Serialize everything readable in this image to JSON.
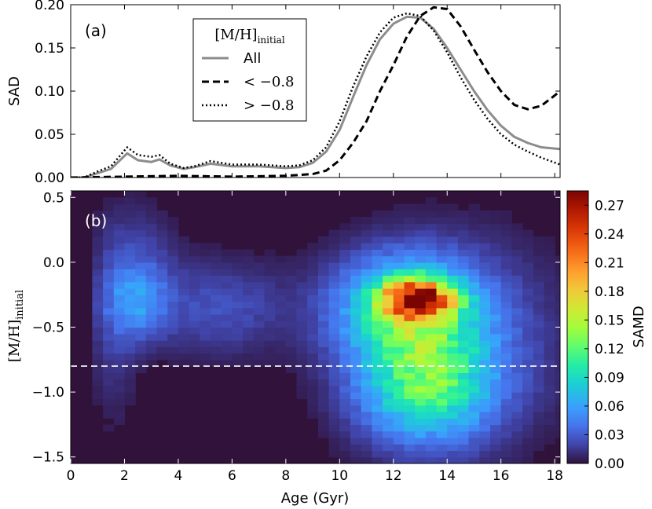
{
  "chart_data": [
    {
      "type": "line",
      "panel_label": "(a)",
      "ylabel": "SAD",
      "xlim": [
        0,
        18.2
      ],
      "ylim": [
        0,
        0.2
      ],
      "yticks": [
        "0.00",
        "0.05",
        "0.10",
        "0.15",
        "0.20"
      ],
      "grid": false,
      "legend": {
        "title": "[M/H]",
        "title_subscript": "initial",
        "placement": "top-center",
        "entries": [
          "All",
          "< −0.8",
          "> −0.8"
        ]
      },
      "series": [
        {
          "name": "All",
          "style": "solid",
          "color": "#8c8c8c",
          "points": [
            [
              0,
              0
            ],
            [
              0.5,
              0
            ],
            [
              1,
              0.005
            ],
            [
              1.5,
              0.01
            ],
            [
              2.1,
              0.028
            ],
            [
              2.5,
              0.02
            ],
            [
              3,
              0.018
            ],
            [
              3.3,
              0.021
            ],
            [
              3.7,
              0.014
            ],
            [
              4.2,
              0.01
            ],
            [
              4.6,
              0.012
            ],
            [
              5.2,
              0.016
            ],
            [
              6,
              0.013
            ],
            [
              7,
              0.013
            ],
            [
              8,
              0.011
            ],
            [
              8.5,
              0.012
            ],
            [
              9,
              0.017
            ],
            [
              9.5,
              0.03
            ],
            [
              10,
              0.055
            ],
            [
              10.5,
              0.093
            ],
            [
              11,
              0.13
            ],
            [
              11.5,
              0.16
            ],
            [
              12,
              0.178
            ],
            [
              12.5,
              0.186
            ],
            [
              13,
              0.185
            ],
            [
              13.5,
              0.172
            ],
            [
              14,
              0.15
            ],
            [
              14.5,
              0.125
            ],
            [
              15,
              0.1
            ],
            [
              15.5,
              0.078
            ],
            [
              16,
              0.06
            ],
            [
              16.5,
              0.047
            ],
            [
              17,
              0.04
            ],
            [
              17.5,
              0.035
            ],
            [
              18.2,
              0.033
            ]
          ]
        },
        {
          "name": "< −0.8",
          "style": "dashed",
          "color": "#000000",
          "points": [
            [
              0,
              0
            ],
            [
              2,
              0.001
            ],
            [
              4,
              0.002
            ],
            [
              6,
              0.001
            ],
            [
              8,
              0.002
            ],
            [
              9,
              0.004
            ],
            [
              9.5,
              0.008
            ],
            [
              10,
              0.02
            ],
            [
              10.5,
              0.04
            ],
            [
              11,
              0.065
            ],
            [
              11.5,
              0.1
            ],
            [
              12,
              0.13
            ],
            [
              12.5,
              0.163
            ],
            [
              13,
              0.187
            ],
            [
              13.5,
              0.197
            ],
            [
              14,
              0.195
            ],
            [
              14.5,
              0.175
            ],
            [
              15,
              0.148
            ],
            [
              15.5,
              0.122
            ],
            [
              16,
              0.1
            ],
            [
              16.5,
              0.084
            ],
            [
              17,
              0.079
            ],
            [
              17.5,
              0.083
            ],
            [
              18,
              0.095
            ],
            [
              18.2,
              0.1
            ]
          ]
        },
        {
          "name": "> −0.8",
          "style": "dotted",
          "color": "#000000",
          "points": [
            [
              0,
              0
            ],
            [
              0.5,
              0
            ],
            [
              1,
              0.007
            ],
            [
              1.5,
              0.013
            ],
            [
              2.1,
              0.035
            ],
            [
              2.5,
              0.026
            ],
            [
              3,
              0.024
            ],
            [
              3.3,
              0.026
            ],
            [
              3.7,
              0.016
            ],
            [
              4.2,
              0.011
            ],
            [
              4.6,
              0.013
            ],
            [
              5.2,
              0.019
            ],
            [
              6,
              0.015
            ],
            [
              7,
              0.015
            ],
            [
              8,
              0.013
            ],
            [
              8.5,
              0.014
            ],
            [
              9,
              0.02
            ],
            [
              9.5,
              0.035
            ],
            [
              10,
              0.065
            ],
            [
              10.5,
              0.105
            ],
            [
              11,
              0.14
            ],
            [
              11.5,
              0.168
            ],
            [
              12,
              0.185
            ],
            [
              12.5,
              0.19
            ],
            [
              13,
              0.187
            ],
            [
              13.5,
              0.17
            ],
            [
              14,
              0.145
            ],
            [
              14.5,
              0.116
            ],
            [
              15,
              0.09
            ],
            [
              15.5,
              0.068
            ],
            [
              16,
              0.05
            ],
            [
              16.5,
              0.038
            ],
            [
              17,
              0.03
            ],
            [
              17.5,
              0.023
            ],
            [
              18.2,
              0.015
            ]
          ]
        }
      ]
    },
    {
      "type": "heatmap",
      "panel_label": "(b)",
      "xlabel": "Age (Gyr)",
      "ylabel": "[M/H]",
      "ylabel_subscript": "initial",
      "xlim": [
        0,
        18.2
      ],
      "ylim": [
        -1.55,
        0.55
      ],
      "xticks": [
        "0",
        "2",
        "4",
        "6",
        "8",
        "10",
        "12",
        "14",
        "16",
        "18"
      ],
      "yticks": [
        "0.5",
        "0.0",
        "−0.5",
        "−1.0",
        "−1.5"
      ],
      "colormap": "jet-like",
      "colorbar": {
        "label": "SAMD",
        "min": 0,
        "max": 0.285,
        "ticks": [
          "0.00",
          "0.03",
          "0.06",
          "0.09",
          "0.12",
          "0.15",
          "0.18",
          "0.21",
          "0.24",
          "0.27"
        ]
      },
      "reference_line": {
        "y": -0.8,
        "style": "dashed",
        "color": "#ffffff"
      },
      "cell_size": {
        "age_gyr": 0.4,
        "mh_dex": 0.05
      },
      "components": [
        {
          "age": 12.9,
          "mh": -0.28,
          "s_age": 0.9,
          "s_mh": 0.1,
          "amp": 0.2
        },
        {
          "age": 12.5,
          "mh": -0.35,
          "s_age": 1.8,
          "s_mh": 0.28,
          "amp": 0.1
        },
        {
          "age": 13.2,
          "mh": -0.95,
          "s_age": 1.7,
          "s_mh": 0.3,
          "amp": 0.1
        },
        {
          "age": 14.5,
          "mh": -0.6,
          "s_age": 2.5,
          "s_mh": 0.5,
          "amp": 0.03
        },
        {
          "age": 2.5,
          "mh": -0.3,
          "s_age": 0.8,
          "s_mh": 0.2,
          "amp": 0.05
        },
        {
          "age": 5.5,
          "mh": -0.35,
          "s_age": 1.8,
          "s_mh": 0.25,
          "amp": 0.025
        },
        {
          "age": 2.5,
          "mh": 0.1,
          "s_age": 1.0,
          "s_mh": 0.25,
          "amp": 0.015
        },
        {
          "age": 1.6,
          "mh": -0.5,
          "s_age": 0.6,
          "s_mh": 0.5,
          "amp": 0.015
        }
      ]
    }
  ]
}
